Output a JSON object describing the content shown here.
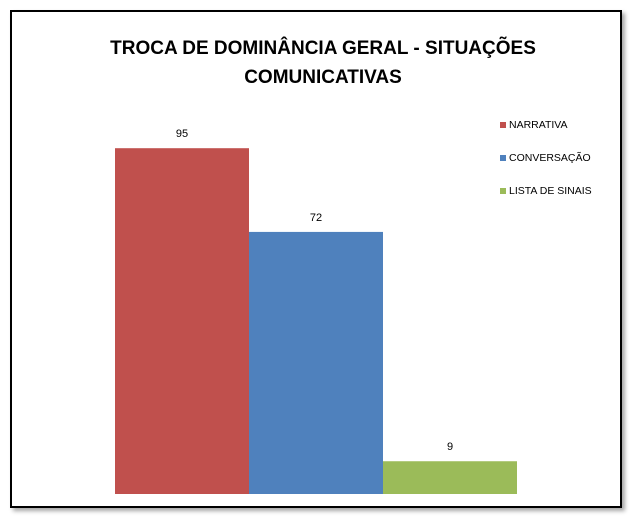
{
  "chart_data": {
    "type": "bar",
    "title_lines": [
      "TROCA DE DOMINÂNCIA GERAL - SITUAÇÕES",
      "COMUNICATIVAS"
    ],
    "categories": [
      "NARRATIVA",
      "CONVERSAÇÃO",
      "LISTA DE SINAIS"
    ],
    "values": [
      95,
      72,
      9
    ],
    "colors": [
      "#C0504D",
      "#4F81BD",
      "#9BBB59"
    ],
    "data_labels": [
      "95",
      "72",
      "9"
    ],
    "legend": [
      "NARRATIVA",
      "CONVERSAÇÃO",
      "LISTA DE SINAIS"
    ],
    "legend_position": "top-right",
    "ylim": [
      0,
      100
    ],
    "grid": false,
    "axes_visible": false
  }
}
